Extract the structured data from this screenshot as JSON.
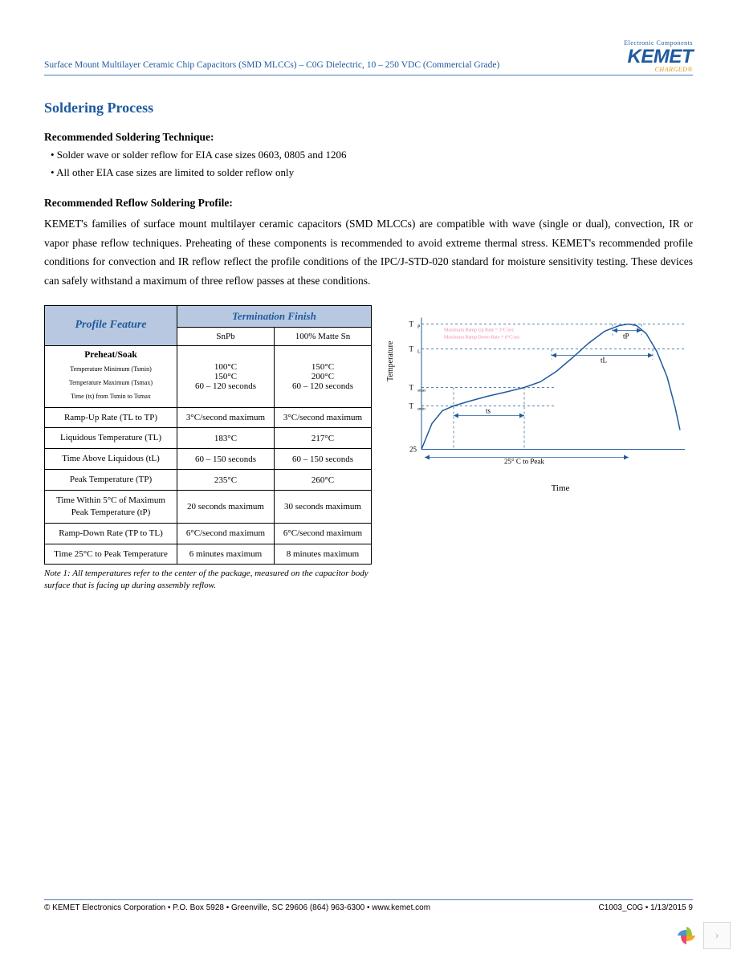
{
  "header": {
    "title": "Surface Mount Multilayer Ceramic Chip Capacitors (SMD MLCCs) – C0G Dielectric, 10 – 250 VDC (Commercial Grade)",
    "logo_tagline": "Electronic Components",
    "logo_main": "KEMET",
    "logo_charged": "CHARGED®"
  },
  "section": {
    "title": "Soldering Process",
    "recommended_technique_heading": "Recommended Soldering Technique:",
    "bullet1": "• Solder wave or solder reflow for EIA case sizes 0603, 0805 and 1206",
    "bullet2": "• All other EIA case sizes are limited to solder reflow only",
    "recommended_profile_heading": "Recommended Reflow Soldering Profile:",
    "body_paragraph": "KEMET's families of surface mount multilayer ceramic capacitors (SMD MLCCs) are compatible with wave (single or dual), convection, IR or vapor phase reflow techniques. Preheating of these components is recommended to avoid extreme thermal stress. KEMET's recommended profile conditions for convection and IR reflow reflect the profile conditions of the IPC/J-STD-020 standard for moisture sensitivity testing. These devices can safely withstand a maximum of three reflow passes at these conditions."
  },
  "table": {
    "header_feature": "Profile Feature",
    "header_termination": "Termination Finish",
    "col_snpb": "SnPb",
    "col_sn": "100% Matte Sn",
    "rows": [
      {
        "label": "Preheat/Soak",
        "sublabels": [
          "Temperature Minimum (Tsmin)",
          "Temperature Maximum (Tsmax)",
          "Time (ts) from Tsmin to Tsmax"
        ],
        "snpb": [
          "100°C",
          "150°C",
          "60 – 120 seconds"
        ],
        "sn": [
          "150°C",
          "200°C",
          "60 – 120 seconds"
        ]
      },
      {
        "label": "Ramp-Up Rate (TL to TP)",
        "snpb": "3°C/second maximum",
        "sn": "3°C/second maximum"
      },
      {
        "label": "Liquidous Temperature (TL)",
        "snpb": "183°C",
        "sn": "217°C"
      },
      {
        "label": "Time Above Liquidous (tL)",
        "snpb": "60 – 150 seconds",
        "sn": "60 – 150 seconds"
      },
      {
        "label": "Peak Temperature (TP)",
        "snpb": "235°C",
        "sn": "260°C"
      },
      {
        "label": "Time Within 5°C of Maximum Peak Temperature (tP)",
        "snpb": "20 seconds maximum",
        "sn": "30 seconds maximum"
      },
      {
        "label": "Ramp-Down Rate (TP to TL)",
        "snpb": "6°C/second maximum",
        "sn": "6°C/second maximum"
      },
      {
        "label": "Time 25°C to Peak Temperature",
        "snpb": "6 minutes maximum",
        "sn": "8 minutes maximum"
      }
    ],
    "note": "Note 1:  All temperatures refer to the center of the package, measured on the capacitor body surface that is facing up during assembly reflow."
  },
  "chart": {
    "type": "line",
    "y_axis_label": "Temperature",
    "x_axis_label": "Time",
    "y_ticks": [
      "TP",
      "TL",
      "Tsmax",
      "Tsmin",
      "25"
    ],
    "x_range_label": "25° C to Peak",
    "annotation_rampup": "Maximum Ramp Up Rate = 3°C/sec",
    "annotation_rampdown": "Maximum Ramp Down Rate = 6°C/sec",
    "label_tp": "tP",
    "label_tl": "tL",
    "label_ts": "ts",
    "curve_color": "#1f5a9e",
    "guide_color": "#1f5a9e",
    "annotation_color": "#f08aa8",
    "background": "#ffffff",
    "curve_points": [
      [
        32,
        172
      ],
      [
        45,
        140
      ],
      [
        58,
        124
      ],
      [
        72,
        118
      ],
      [
        92,
        112
      ],
      [
        114,
        106
      ],
      [
        140,
        100
      ],
      [
        160,
        95
      ],
      [
        180,
        88
      ],
      [
        200,
        75
      ],
      [
        220,
        58
      ],
      [
        240,
        40
      ],
      [
        260,
        25
      ],
      [
        278,
        18
      ],
      [
        290,
        16
      ],
      [
        300,
        18
      ],
      [
        312,
        28
      ],
      [
        325,
        50
      ],
      [
        338,
        82
      ],
      [
        348,
        120
      ],
      [
        354,
        148
      ]
    ],
    "y_tick_positions": [
      16,
      47,
      95,
      118,
      172
    ],
    "guide_x_ts_start": 72,
    "guide_x_ts_end": 160,
    "guide_x_tl_start": 194,
    "guide_x_tl_end": 320,
    "guide_x_tp_start": 270,
    "guide_x_tp_end": 306,
    "arrow_y_25peak": 182
  },
  "footer": {
    "left": "© KEMET Electronics Corporation • P.O. Box 5928 • Greenville, SC 29606 (864) 963-6300 • www.kemet.com",
    "right": "C1003_C0G • 1/13/2015        9"
  },
  "colors": {
    "brand_blue": "#1f5a9e",
    "table_header_bg": "#b8c8e0",
    "gold": "#d89b1c"
  }
}
